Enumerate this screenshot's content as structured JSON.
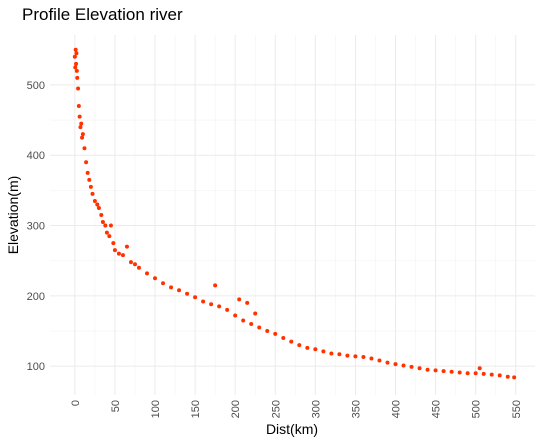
{
  "chart_data": {
    "type": "scatter",
    "title": "Profile Elevation river",
    "x_label": "Dist(km)",
    "y_label": "Elevation(m)",
    "color": "#ff3300",
    "grid": true,
    "xlim": [
      -31,
      574
    ],
    "ylim": [
      59,
      571
    ],
    "xticks": [
      0,
      50,
      100,
      150,
      200,
      250,
      300,
      350,
      400,
      450,
      500,
      550
    ],
    "yticks": [
      100,
      200,
      300,
      400,
      500
    ],
    "x": [
      0,
      0.5,
      1,
      1.5,
      2,
      2.5,
      3,
      4,
      5,
      6,
      7,
      8,
      9,
      10,
      12,
      14,
      16,
      18,
      20,
      22,
      25,
      28,
      30,
      33,
      35,
      38,
      40,
      43,
      45,
      48,
      50,
      55,
      60,
      65,
      70,
      75,
      80,
      90,
      100,
      110,
      120,
      130,
      140,
      150,
      160,
      170,
      175,
      180,
      190,
      200,
      205,
      210,
      215,
      220,
      225,
      230,
      240,
      250,
      260,
      270,
      280,
      290,
      300,
      310,
      320,
      330,
      340,
      350,
      360,
      370,
      380,
      390,
      400,
      410,
      420,
      430,
      440,
      450,
      460,
      470,
      480,
      490,
      500,
      505,
      510,
      520,
      530,
      540,
      548
    ],
    "y": [
      540,
      525,
      550,
      530,
      545,
      520,
      510,
      495,
      470,
      455,
      440,
      445,
      425,
      430,
      410,
      390,
      375,
      365,
      355,
      345,
      335,
      330,
      325,
      315,
      305,
      300,
      290,
      285,
      300,
      275,
      265,
      260,
      258,
      270,
      248,
      245,
      240,
      232,
      225,
      218,
      212,
      208,
      203,
      198,
      192,
      188,
      215,
      185,
      180,
      172,
      195,
      165,
      190,
      160,
      175,
      155,
      150,
      146,
      140,
      135,
      130,
      126,
      124,
      121,
      118,
      117,
      115,
      114,
      113,
      111,
      108,
      105,
      103,
      101,
      99,
      97,
      95,
      94,
      93,
      92,
      91,
      90,
      90,
      97,
      89,
      88,
      87,
      85,
      84
    ]
  }
}
